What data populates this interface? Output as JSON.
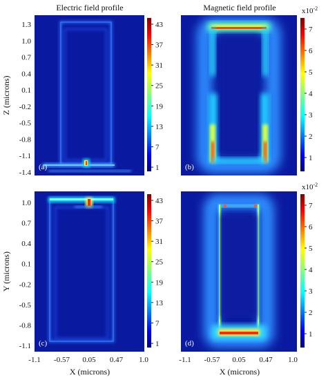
{
  "chart_data": [
    {
      "type": "heatmap",
      "panel_label": "(a)",
      "title": "Electric field profile",
      "ylabel": "Z (microns)",
      "yticks": [
        "1.3",
        "1.0",
        "0.7",
        "0.4",
        "0.1",
        "-0.2",
        "-0.5",
        "-0.8",
        "-1.1",
        "-1.4"
      ],
      "colorbar": {
        "ticks": [
          "43",
          "37",
          "31",
          "25",
          "19",
          "13",
          "7",
          "1"
        ],
        "exponent": ""
      }
    },
    {
      "type": "heatmap",
      "panel_label": "(b)",
      "title": "Magnetic field profile",
      "colorbar": {
        "ticks": [
          "7",
          "6",
          "5",
          "4",
          "3",
          "2",
          "1"
        ],
        "exponent": "x10-2",
        "exponent_base": "x10",
        "exponent_power": "-2"
      }
    },
    {
      "type": "heatmap",
      "panel_label": "(c)",
      "ylabel": "Y (microns)",
      "xlabel": "X (microns)",
      "yticks": [
        "1.0",
        "0.7",
        "0.4",
        "0.1",
        "-0.2",
        "-0.5",
        "-0.8",
        "-1.1"
      ],
      "xticks": [
        "-1.1",
        "-0.57",
        "0.05",
        "0.47",
        "1.0"
      ],
      "colorbar": {
        "ticks": [
          "43",
          "37",
          "31",
          "25",
          "19",
          "13",
          "7",
          "1"
        ],
        "exponent": ""
      }
    },
    {
      "type": "heatmap",
      "panel_label": "(d)",
      "xlabel": "X (microns)",
      "xticks": [
        "-1.1",
        "-0.57",
        "0.05",
        "0.47",
        "1.0"
      ],
      "colorbar": {
        "ticks": [
          "7",
          "6",
          "5",
          "4",
          "3",
          "2",
          "1"
        ],
        "exponent": "x10-2",
        "exponent_base": "x10",
        "exponent_power": "-2"
      }
    }
  ],
  "colors": {
    "background_field": "#0a1aa0",
    "jet_low": "#00007f",
    "jet_high": "#7f0000"
  }
}
